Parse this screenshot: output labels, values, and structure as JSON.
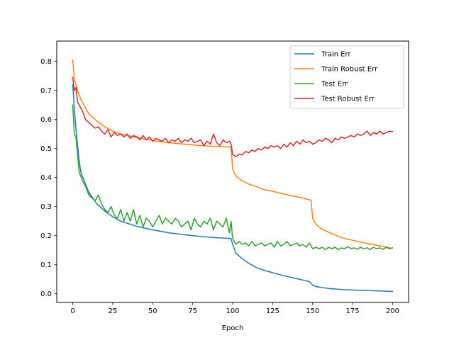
{
  "chart_data": {
    "type": "line",
    "title": "",
    "xlabel": "Epoch",
    "ylabel": "",
    "xlim": [
      -10,
      210
    ],
    "ylim": [
      -0.03,
      0.87
    ],
    "x_ticks": [
      0,
      25,
      50,
      75,
      100,
      125,
      150,
      175,
      200
    ],
    "x_tick_labels": [
      "0",
      "25",
      "50",
      "75",
      "100",
      "125",
      "150",
      "175",
      "200"
    ],
    "y_ticks": [
      0.0,
      0.1,
      0.2,
      0.3,
      0.4,
      0.5,
      0.6,
      0.7,
      0.8
    ],
    "y_tick_labels": [
      "0.0",
      "0.1",
      "0.2",
      "0.3",
      "0.4",
      "0.5",
      "0.6",
      "0.7",
      "0.8"
    ],
    "grid": false,
    "legend_position": "upper right",
    "series": [
      {
        "name": "Train Err",
        "color": "#1f77b4",
        "points": [
          [
            0,
            0.72
          ],
          [
            1,
            0.64
          ],
          [
            2,
            0.57
          ],
          [
            3,
            0.51
          ],
          [
            4,
            0.46
          ],
          [
            5,
            0.42
          ],
          [
            7,
            0.39
          ],
          [
            10,
            0.35
          ],
          [
            15,
            0.31
          ],
          [
            20,
            0.285
          ],
          [
            25,
            0.265
          ],
          [
            30,
            0.25
          ],
          [
            40,
            0.232
          ],
          [
            50,
            0.22
          ],
          [
            60,
            0.21
          ],
          [
            70,
            0.203
          ],
          [
            80,
            0.197
          ],
          [
            90,
            0.193
          ],
          [
            99,
            0.19
          ],
          [
            100,
            0.17
          ],
          [
            102,
            0.14
          ],
          [
            105,
            0.125
          ],
          [
            110,
            0.105
          ],
          [
            115,
            0.09
          ],
          [
            120,
            0.08
          ],
          [
            130,
            0.065
          ],
          [
            140,
            0.052
          ],
          [
            148,
            0.042
          ],
          [
            150,
            0.03
          ],
          [
            152,
            0.025
          ],
          [
            160,
            0.018
          ],
          [
            170,
            0.014
          ],
          [
            180,
            0.012
          ],
          [
            190,
            0.01
          ],
          [
            200,
            0.008
          ]
        ]
      },
      {
        "name": "Train Robust Err",
        "color": "#ff7f0e",
        "points": [
          [
            0,
            0.805
          ],
          [
            1,
            0.74
          ],
          [
            3,
            0.7
          ],
          [
            5,
            0.67
          ],
          [
            8,
            0.64
          ],
          [
            10,
            0.62
          ],
          [
            15,
            0.595
          ],
          [
            20,
            0.575
          ],
          [
            25,
            0.56
          ],
          [
            30,
            0.55
          ],
          [
            40,
            0.538
          ],
          [
            50,
            0.528
          ],
          [
            60,
            0.52
          ],
          [
            70,
            0.515
          ],
          [
            80,
            0.51
          ],
          [
            90,
            0.507
          ],
          [
            99,
            0.505
          ],
          [
            100,
            0.43
          ],
          [
            101,
            0.415
          ],
          [
            103,
            0.4
          ],
          [
            105,
            0.392
          ],
          [
            110,
            0.378
          ],
          [
            115,
            0.368
          ],
          [
            120,
            0.358
          ],
          [
            125,
            0.353
          ],
          [
            130,
            0.346
          ],
          [
            135,
            0.34
          ],
          [
            140,
            0.334
          ],
          [
            145,
            0.328
          ],
          [
            149,
            0.322
          ],
          [
            150,
            0.26
          ],
          [
            152,
            0.24
          ],
          [
            155,
            0.225
          ],
          [
            160,
            0.212
          ],
          [
            165,
            0.2
          ],
          [
            170,
            0.19
          ],
          [
            180,
            0.178
          ],
          [
            190,
            0.167
          ],
          [
            195,
            0.162
          ],
          [
            199,
            0.157
          ]
        ]
      },
      {
        "name": "Test Err",
        "color": "#2ca02c",
        "points": [
          [
            0,
            0.65
          ],
          [
            1,
            0.55
          ],
          [
            2,
            0.54
          ],
          [
            3,
            0.48
          ],
          [
            4,
            0.42
          ],
          [
            6,
            0.39
          ],
          [
            8,
            0.37
          ],
          [
            10,
            0.34
          ],
          [
            12,
            0.33
          ],
          [
            14,
            0.32
          ],
          [
            16,
            0.34
          ],
          [
            18,
            0.31
          ],
          [
            20,
            0.29
          ],
          [
            22,
            0.28
          ],
          [
            24,
            0.3
          ],
          [
            26,
            0.27
          ],
          [
            28,
            0.26
          ],
          [
            30,
            0.29
          ],
          [
            32,
            0.25
          ],
          [
            34,
            0.28
          ],
          [
            36,
            0.25
          ],
          [
            38,
            0.29
          ],
          [
            40,
            0.24
          ],
          [
            42,
            0.27
          ],
          [
            44,
            0.23
          ],
          [
            46,
            0.26
          ],
          [
            48,
            0.25
          ],
          [
            50,
            0.23
          ],
          [
            52,
            0.25
          ],
          [
            54,
            0.27
          ],
          [
            56,
            0.24
          ],
          [
            58,
            0.26
          ],
          [
            60,
            0.25
          ],
          [
            62,
            0.24
          ],
          [
            64,
            0.26
          ],
          [
            66,
            0.25
          ],
          [
            68,
            0.23
          ],
          [
            70,
            0.24
          ],
          [
            72,
            0.25
          ],
          [
            74,
            0.22
          ],
          [
            76,
            0.26
          ],
          [
            78,
            0.24
          ],
          [
            80,
            0.23
          ],
          [
            82,
            0.25
          ],
          [
            84,
            0.24
          ],
          [
            86,
            0.26
          ],
          [
            88,
            0.22
          ],
          [
            90,
            0.25
          ],
          [
            92,
            0.24
          ],
          [
            94,
            0.23
          ],
          [
            96,
            0.26
          ],
          [
            98,
            0.21
          ],
          [
            99,
            0.25
          ],
          [
            100,
            0.19
          ],
          [
            102,
            0.17
          ],
          [
            104,
            0.18
          ],
          [
            106,
            0.17
          ],
          [
            108,
            0.175
          ],
          [
            110,
            0.165
          ],
          [
            112,
            0.18
          ],
          [
            114,
            0.165
          ],
          [
            116,
            0.17
          ],
          [
            118,
            0.175
          ],
          [
            120,
            0.165
          ],
          [
            122,
            0.17
          ],
          [
            124,
            0.175
          ],
          [
            126,
            0.16
          ],
          [
            128,
            0.18
          ],
          [
            130,
            0.165
          ],
          [
            132,
            0.17
          ],
          [
            134,
            0.18
          ],
          [
            136,
            0.165
          ],
          [
            138,
            0.17
          ],
          [
            140,
            0.175
          ],
          [
            142,
            0.165
          ],
          [
            144,
            0.17
          ],
          [
            146,
            0.16
          ],
          [
            148,
            0.175
          ],
          [
            150,
            0.155
          ],
          [
            152,
            0.16
          ],
          [
            154,
            0.155
          ],
          [
            156,
            0.16
          ],
          [
            158,
            0.152
          ],
          [
            160,
            0.16
          ],
          [
            162,
            0.155
          ],
          [
            164,
            0.16
          ],
          [
            166,
            0.152
          ],
          [
            168,
            0.158
          ],
          [
            170,
            0.155
          ],
          [
            172,
            0.162
          ],
          [
            174,
            0.155
          ],
          [
            176,
            0.158
          ],
          [
            178,
            0.153
          ],
          [
            180,
            0.16
          ],
          [
            182,
            0.155
          ],
          [
            184,
            0.158
          ],
          [
            186,
            0.152
          ],
          [
            188,
            0.16
          ],
          [
            190,
            0.155
          ],
          [
            192,
            0.158
          ],
          [
            194,
            0.153
          ],
          [
            196,
            0.16
          ],
          [
            198,
            0.155
          ],
          [
            200,
            0.158
          ]
        ]
      },
      {
        "name": "Test Robust Err",
        "color": "#d62728",
        "points": [
          [
            0,
            0.745
          ],
          [
            1,
            0.7
          ],
          [
            2,
            0.71
          ],
          [
            3,
            0.66
          ],
          [
            4,
            0.65
          ],
          [
            6,
            0.63
          ],
          [
            8,
            0.6
          ],
          [
            10,
            0.59
          ],
          [
            12,
            0.58
          ],
          [
            14,
            0.57
          ],
          [
            16,
            0.575
          ],
          [
            18,
            0.56
          ],
          [
            20,
            0.55
          ],
          [
            22,
            0.565
          ],
          [
            24,
            0.54
          ],
          [
            26,
            0.555
          ],
          [
            28,
            0.545
          ],
          [
            30,
            0.55
          ],
          [
            32,
            0.54
          ],
          [
            34,
            0.55
          ],
          [
            36,
            0.535
          ],
          [
            38,
            0.545
          ],
          [
            40,
            0.54
          ],
          [
            42,
            0.53
          ],
          [
            44,
            0.545
          ],
          [
            46,
            0.53
          ],
          [
            48,
            0.54
          ],
          [
            50,
            0.525
          ],
          [
            52,
            0.535
          ],
          [
            54,
            0.53
          ],
          [
            56,
            0.525
          ],
          [
            58,
            0.535
          ],
          [
            60,
            0.52
          ],
          [
            62,
            0.53
          ],
          [
            64,
            0.525
          ],
          [
            66,
            0.535
          ],
          [
            68,
            0.52
          ],
          [
            70,
            0.53
          ],
          [
            72,
            0.525
          ],
          [
            74,
            0.535
          ],
          [
            76,
            0.52
          ],
          [
            78,
            0.525
          ],
          [
            80,
            0.53
          ],
          [
            82,
            0.51
          ],
          [
            84,
            0.525
          ],
          [
            86,
            0.515
          ],
          [
            88,
            0.55
          ],
          [
            90,
            0.52
          ],
          [
            92,
            0.51
          ],
          [
            94,
            0.53
          ],
          [
            96,
            0.52
          ],
          [
            98,
            0.525
          ],
          [
            99,
            0.515
          ],
          [
            100,
            0.48
          ],
          [
            102,
            0.472
          ],
          [
            104,
            0.48
          ],
          [
            106,
            0.478
          ],
          [
            108,
            0.49
          ],
          [
            110,
            0.485
          ],
          [
            112,
            0.495
          ],
          [
            114,
            0.49
          ],
          [
            116,
            0.5
          ],
          [
            118,
            0.495
          ],
          [
            120,
            0.505
          ],
          [
            122,
            0.5
          ],
          [
            124,
            0.51
          ],
          [
            126,
            0.505
          ],
          [
            128,
            0.51
          ],
          [
            130,
            0.5
          ],
          [
            132,
            0.515
          ],
          [
            134,
            0.505
          ],
          [
            136,
            0.52
          ],
          [
            138,
            0.51
          ],
          [
            140,
            0.525
          ],
          [
            142,
            0.515
          ],
          [
            144,
            0.53
          ],
          [
            146,
            0.52
          ],
          [
            148,
            0.525
          ],
          [
            150,
            0.515
          ],
          [
            152,
            0.52
          ],
          [
            154,
            0.53
          ],
          [
            156,
            0.525
          ],
          [
            158,
            0.535
          ],
          [
            160,
            0.53
          ],
          [
            162,
            0.52
          ],
          [
            164,
            0.535
          ],
          [
            166,
            0.53
          ],
          [
            168,
            0.54
          ],
          [
            170,
            0.535
          ],
          [
            172,
            0.54
          ],
          [
            174,
            0.545
          ],
          [
            176,
            0.54
          ],
          [
            178,
            0.55
          ],
          [
            180,
            0.545
          ],
          [
            182,
            0.55
          ],
          [
            184,
            0.56
          ],
          [
            186,
            0.545
          ],
          [
            188,
            0.555
          ],
          [
            190,
            0.55
          ],
          [
            192,
            0.56
          ],
          [
            194,
            0.55
          ],
          [
            196,
            0.555
          ],
          [
            198,
            0.56
          ],
          [
            200,
            0.558
          ]
        ]
      }
    ]
  }
}
